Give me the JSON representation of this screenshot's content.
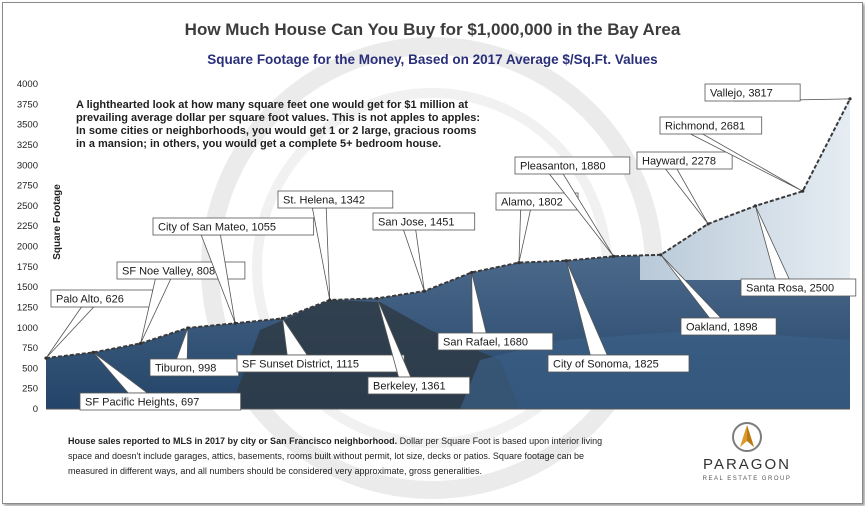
{
  "header": {
    "title": "How Much House Can You Buy for $1,000,000 in the Bay Area",
    "subtitle": "Square Footage for the Money, Based on 2017 Average $/Sq.Ft. Values"
  },
  "annotation": [
    "A lighthearted look at how many square feet one would get for $1 million at",
    "prevailing average dollar per square foot values. This is not apples to apples:",
    "In some cities or neighborhoods, you would get 1 or 2 large, gracious rooms",
    "in a mansion; in others, you would get a complete 5+ bedroom house."
  ],
  "footer": {
    "bold": "House sales reported to MLS in 2017 by city or San Francisco neighborhood.",
    "lines": [
      " Dollar per Square Foot is based upon interior living",
      "space and doesn't include garages, attics, basements, rooms built without permit, lot size, decks or patios. Square footage can be",
      "measured in different ways, and all numbers should be considered very approximate, gross generalities."
    ]
  },
  "logo": {
    "name": "PARAGON",
    "tagline": "REAL ESTATE GROUP",
    "colors": {
      "gold": "#d99a2b",
      "gray": "#7c7c7c"
    }
  },
  "colors": {
    "line": "#444444",
    "fill_top": "#8fa7bf",
    "fill_water": "#2e4f74",
    "hill": "#2f3b47",
    "sky": "#cfdbe6"
  },
  "chart_data": {
    "type": "area",
    "title": "How Much House Can You Buy for $1,000,000 in the Bay Area",
    "subtitle": "Square Footage for the Money, Based on 2017 Average $/Sq.Ft. Values",
    "ylabel": "Square Footage",
    "xlabel": "",
    "ylim": [
      0,
      4000
    ],
    "yticks": [
      0,
      250,
      500,
      750,
      1000,
      1250,
      1500,
      1750,
      2000,
      2250,
      2500,
      2750,
      3000,
      3250,
      3500,
      3750,
      4000
    ],
    "grid": false,
    "points": [
      {
        "label": "Palo Alto, 626",
        "value": 626
      },
      {
        "label": "SF Pacific Heights, 697",
        "value": 697
      },
      {
        "label": "SF Noe Valley, 808",
        "value": 808
      },
      {
        "label": "Tiburon, 998",
        "value": 998
      },
      {
        "label": "City of San Mateo, 1055",
        "value": 1055
      },
      {
        "label": "SF Sunset District, 1115",
        "value": 1115
      },
      {
        "label": "St. Helena, 1342",
        "value": 1342
      },
      {
        "label": "Berkeley, 1361",
        "value": 1361
      },
      {
        "label": "San Jose, 1451",
        "value": 1451
      },
      {
        "label": "San Rafael, 1680",
        "value": 1680
      },
      {
        "label": "Alamo, 1802",
        "value": 1802
      },
      {
        "label": "City of Sonoma, 1825",
        "value": 1825
      },
      {
        "label": "Pleasanton, 1880",
        "value": 1880
      },
      {
        "label": "Oakland, 1898",
        "value": 1898
      },
      {
        "label": "Hayward, 2278",
        "value": 2278
      },
      {
        "label": "Santa Rosa, 2500",
        "value": 2500
      },
      {
        "label": "Richmond, 2681",
        "value": 2681
      },
      {
        "label": "Vallejo, 3817",
        "value": 3817
      }
    ]
  }
}
